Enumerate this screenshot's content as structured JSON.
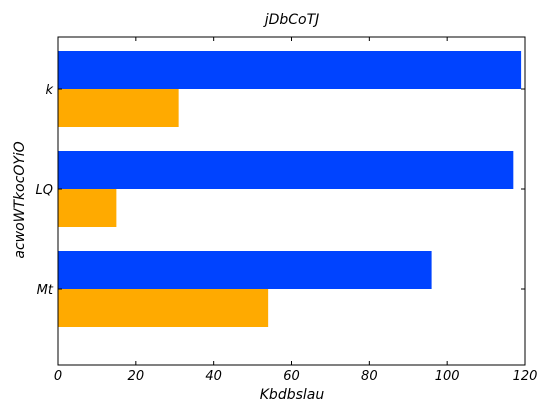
{
  "chart_data": {
    "type": "bar",
    "orientation": "horizontal",
    "title": "jDbCoTJ",
    "xlabel": "Kbdbslau",
    "ylabel": "acwoWTkocOYiO",
    "categories": [
      "k",
      "LQ",
      "Mt"
    ],
    "series": [
      {
        "color": "#0043ff",
        "values": [
          119,
          117,
          96
        ]
      },
      {
        "color": "#ffaa00",
        "values": [
          31,
          15,
          54
        ]
      }
    ],
    "xlim": [
      0,
      120
    ],
    "xticks": [
      "0",
      "20",
      "40",
      "60",
      "80",
      "100",
      "120"
    ],
    "grid": false,
    "legend": "none"
  }
}
